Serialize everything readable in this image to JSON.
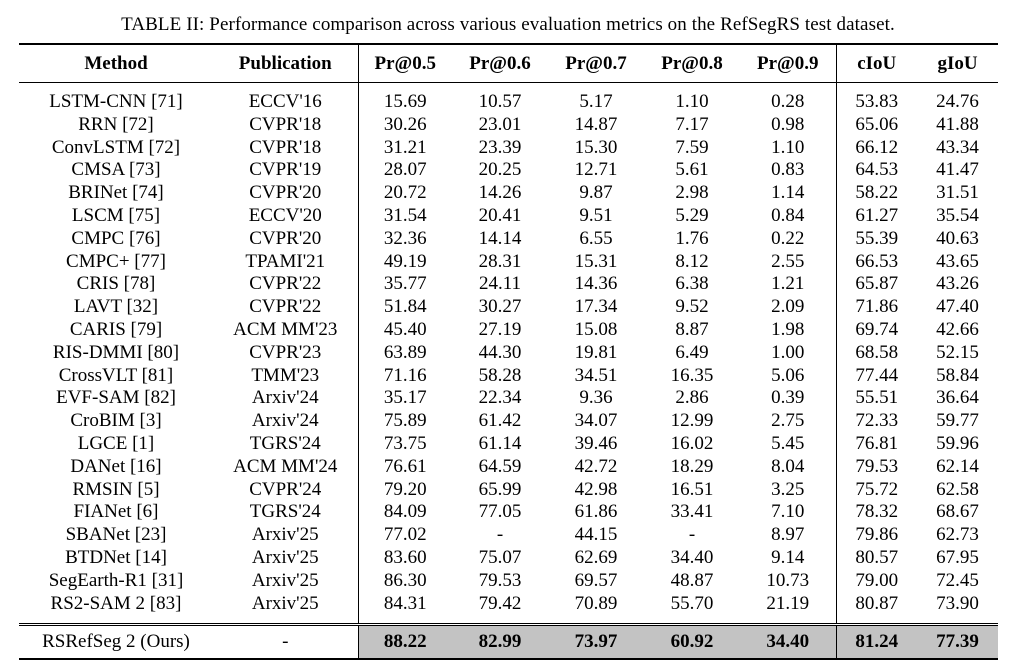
{
  "caption": "TABLE II: Performance comparison across various evaluation metrics on the RefSegRS test dataset.",
  "headers": [
    "Method",
    "Publication",
    "Pr@0.5",
    "Pr@0.6",
    "Pr@0.7",
    "Pr@0.8",
    "Pr@0.9",
    "cIoU",
    "gIoU"
  ],
  "rows": [
    [
      "LSTM-CNN [71]",
      "ECCV'16",
      "15.69",
      "10.57",
      "5.17",
      "1.10",
      "0.28",
      "53.83",
      "24.76"
    ],
    [
      "RRN [72]",
      "CVPR'18",
      "30.26",
      "23.01",
      "14.87",
      "7.17",
      "0.98",
      "65.06",
      "41.88"
    ],
    [
      "ConvLSTM [72]",
      "CVPR'18",
      "31.21",
      "23.39",
      "15.30",
      "7.59",
      "1.10",
      "66.12",
      "43.34"
    ],
    [
      "CMSA [73]",
      "CVPR'19",
      "28.07",
      "20.25",
      "12.71",
      "5.61",
      "0.83",
      "64.53",
      "41.47"
    ],
    [
      "BRINet [74]",
      "CVPR'20",
      "20.72",
      "14.26",
      "9.87",
      "2.98",
      "1.14",
      "58.22",
      "31.51"
    ],
    [
      "LSCM [75]",
      "ECCV'20",
      "31.54",
      "20.41",
      "9.51",
      "5.29",
      "0.84",
      "61.27",
      "35.54"
    ],
    [
      "CMPC [76]",
      "CVPR'20",
      "32.36",
      "14.14",
      "6.55",
      "1.76",
      "0.22",
      "55.39",
      "40.63"
    ],
    [
      "CMPC+ [77]",
      "TPAMI'21",
      "49.19",
      "28.31",
      "15.31",
      "8.12",
      "2.55",
      "66.53",
      "43.65"
    ],
    [
      "CRIS [78]",
      "CVPR'22",
      "35.77",
      "24.11",
      "14.36",
      "6.38",
      "1.21",
      "65.87",
      "43.26"
    ],
    [
      "LAVT [32]",
      "CVPR'22",
      "51.84",
      "30.27",
      "17.34",
      "9.52",
      "2.09",
      "71.86",
      "47.40"
    ],
    [
      "CARIS [79]",
      "ACM MM'23",
      "45.40",
      "27.19",
      "15.08",
      "8.87",
      "1.98",
      "69.74",
      "42.66"
    ],
    [
      "RIS-DMMI [80]",
      "CVPR'23",
      "63.89",
      "44.30",
      "19.81",
      "6.49",
      "1.00",
      "68.58",
      "52.15"
    ],
    [
      "CrossVLT [81]",
      "TMM'23",
      "71.16",
      "58.28",
      "34.51",
      "16.35",
      "5.06",
      "77.44",
      "58.84"
    ],
    [
      "EVF-SAM [82]",
      "Arxiv'24",
      "35.17",
      "22.34",
      "9.36",
      "2.86",
      "0.39",
      "55.51",
      "36.64"
    ],
    [
      "CroBIM [3]",
      "Arxiv'24",
      "75.89",
      "61.42",
      "34.07",
      "12.99",
      "2.75",
      "72.33",
      "59.77"
    ],
    [
      "LGCE [1]",
      "TGRS'24",
      "73.75",
      "61.14",
      "39.46",
      "16.02",
      "5.45",
      "76.81",
      "59.96"
    ],
    [
      "DANet [16]",
      "ACM MM'24",
      "76.61",
      "64.59",
      "42.72",
      "18.29",
      "8.04",
      "79.53",
      "62.14"
    ],
    [
      "RMSIN [5]",
      "CVPR'24",
      "79.20",
      "65.99",
      "42.98",
      "16.51",
      "3.25",
      "75.72",
      "62.58"
    ],
    [
      "FIANet [6]",
      "TGRS'24",
      "84.09",
      "77.05",
      "61.86",
      "33.41",
      "7.10",
      "78.32",
      "68.67"
    ],
    [
      "SBANet [23]",
      "Arxiv'25",
      "77.02",
      "-",
      "44.15",
      "-",
      "8.97",
      "79.86",
      "62.73"
    ],
    [
      "BTDNet [14]",
      "Arxiv'25",
      "83.60",
      "75.07",
      "62.69",
      "34.40",
      "9.14",
      "80.57",
      "67.95"
    ],
    [
      "SegEarth-R1 [31]",
      "Arxiv'25",
      "86.30",
      "79.53",
      "69.57",
      "48.87",
      "10.73",
      "79.00",
      "72.45"
    ],
    [
      "RS2-SAM 2 [83]",
      "Arxiv'25",
      "84.31",
      "79.42",
      "70.89",
      "55.70",
      "21.19",
      "80.87",
      "73.90"
    ]
  ],
  "ours": [
    "RSRefSeg 2 (Ours)",
    "-",
    "88.22",
    "82.99",
    "73.97",
    "60.92",
    "34.40",
    "81.24",
    "77.39"
  ],
  "colors": {
    "highlight": "#c3c3c3",
    "text": "#000000"
  }
}
